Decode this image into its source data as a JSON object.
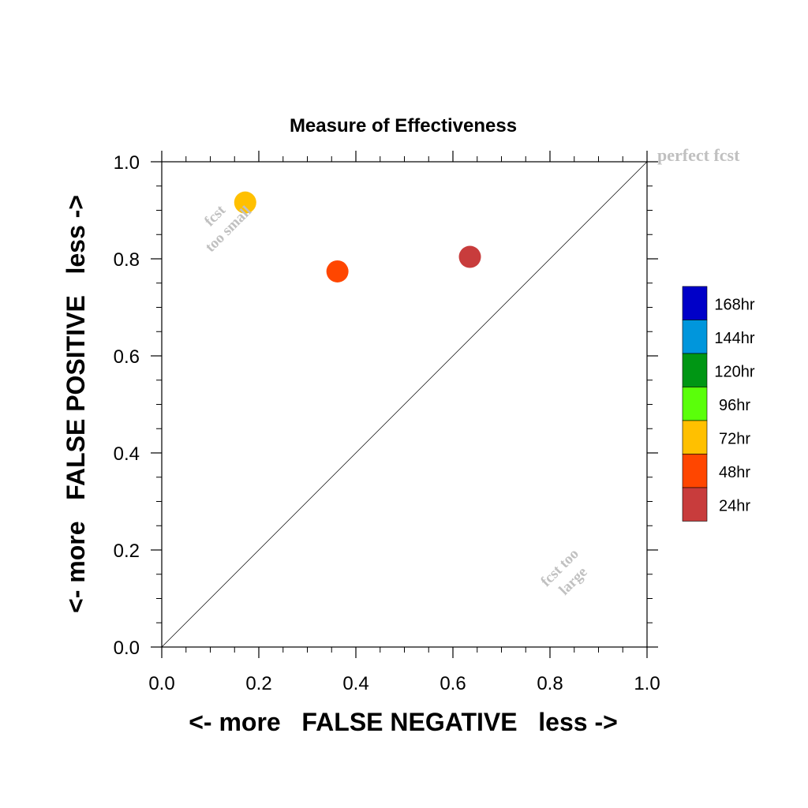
{
  "chart_data": {
    "type": "scatter",
    "title": "Measure of Effectiveness",
    "xlabel": "<- more   FALSE NEGATIVE   less ->",
    "ylabel": "<- more   FALSE POSITIVE   less ->",
    "xlim": [
      0.0,
      1.0
    ],
    "ylim": [
      0.0,
      1.0
    ],
    "xticks": [
      "0.0",
      "0.2",
      "0.4",
      "0.6",
      "0.8",
      "1.0"
    ],
    "yticks": [
      "0.0",
      "0.2",
      "0.4",
      "0.6",
      "0.8",
      "1.0"
    ],
    "grid": false,
    "diagonal_label": "perfect fcst",
    "annotations": {
      "upper_left": [
        "fcst",
        "too small"
      ],
      "lower_right": [
        "fcst too",
        "large"
      ]
    },
    "legend_placement": "right",
    "legend": [
      {
        "label": "168hr",
        "color": "#0000c8"
      },
      {
        "label": "144hr",
        "color": "#0096dc"
      },
      {
        "label": "120hr",
        "color": "#009614"
      },
      {
        "label": "96hr",
        "color": "#5aff0a"
      },
      {
        "label": "72hr",
        "color": "#ffc000"
      },
      {
        "label": "48hr",
        "color": "#ff4600"
      },
      {
        "label": "24hr",
        "color": "#c83c3c"
      }
    ],
    "series": [
      {
        "name": "24hr",
        "x": 0.635,
        "y": 0.804,
        "color": "#c83c3c"
      },
      {
        "name": "48hr",
        "x": 0.362,
        "y": 0.774,
        "color": "#ff4600"
      },
      {
        "name": "72hr",
        "x": 0.172,
        "y": 0.916,
        "color": "#ffc000"
      }
    ]
  }
}
